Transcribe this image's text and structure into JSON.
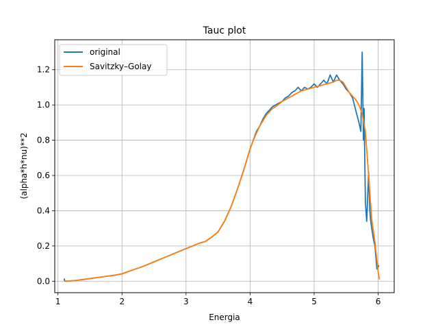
{
  "chart_data": {
    "type": "line",
    "title": "Tauc plot",
    "xlabel": "Energia",
    "ylabel": "(alpha*h*nu)**2",
    "xlim": [
      0.95,
      6.25
    ],
    "ylim": [
      -0.065,
      1.37
    ],
    "xticks": [
      1,
      2,
      3,
      4,
      5,
      6
    ],
    "xtick_labels": [
      "1",
      "2",
      "3",
      "4",
      "5",
      "6"
    ],
    "yticks": [
      0.0,
      0.2,
      0.4,
      0.6,
      0.8,
      1.0,
      1.2
    ],
    "ytick_labels": [
      "0.0",
      "0.2",
      "0.4",
      "0.6",
      "0.8",
      "1.0",
      "1.2"
    ],
    "grid": true,
    "legend_position": "top-left",
    "series": [
      {
        "name": "original",
        "color": "#1f77b4",
        "x": [
          1.1,
          1.1,
          1.12,
          1.2,
          1.3,
          1.4,
          1.5,
          1.6,
          1.7,
          1.8,
          1.9,
          2.0,
          2.1,
          2.2,
          2.3,
          2.4,
          2.5,
          2.6,
          2.7,
          2.8,
          2.9,
          3.0,
          3.1,
          3.2,
          3.3,
          3.4,
          3.5,
          3.6,
          3.7,
          3.8,
          3.9,
          4.0,
          4.05,
          4.1,
          4.15,
          4.2,
          4.25,
          4.3,
          4.35,
          4.4,
          4.45,
          4.5,
          4.55,
          4.6,
          4.65,
          4.7,
          4.75,
          4.8,
          4.85,
          4.9,
          4.95,
          5.0,
          5.05,
          5.1,
          5.15,
          5.2,
          5.25,
          5.3,
          5.35,
          5.4,
          5.45,
          5.5,
          5.55,
          5.6,
          5.65,
          5.7,
          5.73,
          5.75,
          5.77,
          5.78,
          5.8,
          5.82,
          5.83,
          5.85,
          5.87,
          5.88,
          5.9,
          5.92,
          5.95,
          5.98,
          6.0,
          6.01
        ],
        "y": [
          0.015,
          0.005,
          0.0,
          0.002,
          0.005,
          0.01,
          0.015,
          0.02,
          0.025,
          0.03,
          0.035,
          0.042,
          0.055,
          0.068,
          0.08,
          0.095,
          0.11,
          0.125,
          0.14,
          0.155,
          0.17,
          0.185,
          0.2,
          0.215,
          0.225,
          0.25,
          0.28,
          0.34,
          0.42,
          0.52,
          0.63,
          0.75,
          0.8,
          0.85,
          0.88,
          0.92,
          0.95,
          0.97,
          0.99,
          1.0,
          1.01,
          1.02,
          1.04,
          1.05,
          1.07,
          1.08,
          1.1,
          1.08,
          1.1,
          1.09,
          1.1,
          1.12,
          1.1,
          1.12,
          1.14,
          1.12,
          1.17,
          1.13,
          1.17,
          1.14,
          1.12,
          1.09,
          1.07,
          1.04,
          0.97,
          0.9,
          0.85,
          1.3,
          0.8,
          0.98,
          0.45,
          0.34,
          0.42,
          0.62,
          0.4,
          0.35,
          0.3,
          0.25,
          0.2,
          0.07,
          0.08,
          0.09
        ]
      },
      {
        "name": "Savitzky–Golay",
        "color": "#ff7f0e",
        "x": [
          1.1,
          1.2,
          1.3,
          1.4,
          1.5,
          1.6,
          1.7,
          1.8,
          1.9,
          2.0,
          2.1,
          2.2,
          2.3,
          2.4,
          2.5,
          2.6,
          2.7,
          2.8,
          2.9,
          3.0,
          3.1,
          3.2,
          3.3,
          3.4,
          3.5,
          3.6,
          3.7,
          3.8,
          3.9,
          4.0,
          4.05,
          4.1,
          4.15,
          4.2,
          4.25,
          4.3,
          4.35,
          4.4,
          4.5,
          4.6,
          4.7,
          4.8,
          4.9,
          5.0,
          5.1,
          5.2,
          5.3,
          5.35,
          5.4,
          5.45,
          5.5,
          5.55,
          5.6,
          5.65,
          5.7,
          5.75,
          5.8,
          5.85,
          5.9,
          5.95,
          6.0,
          6.02
        ],
        "y": [
          0.0,
          0.002,
          0.005,
          0.01,
          0.015,
          0.02,
          0.025,
          0.03,
          0.035,
          0.042,
          0.055,
          0.068,
          0.08,
          0.095,
          0.11,
          0.125,
          0.14,
          0.155,
          0.17,
          0.185,
          0.2,
          0.215,
          0.225,
          0.25,
          0.28,
          0.34,
          0.42,
          0.52,
          0.63,
          0.75,
          0.8,
          0.84,
          0.88,
          0.91,
          0.94,
          0.96,
          0.98,
          0.99,
          1.02,
          1.04,
          1.06,
          1.08,
          1.09,
          1.1,
          1.11,
          1.12,
          1.13,
          1.14,
          1.14,
          1.13,
          1.1,
          1.07,
          1.05,
          1.03,
          1.0,
          0.95,
          0.85,
          0.6,
          0.35,
          0.22,
          0.05,
          0.01
        ]
      }
    ]
  }
}
